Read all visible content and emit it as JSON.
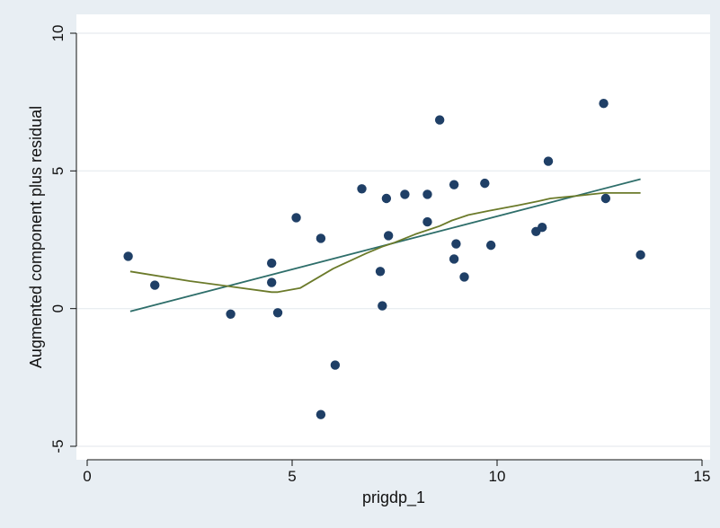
{
  "chart_data": {
    "type": "scatter",
    "title": "",
    "xlabel": "prigdp_1",
    "ylabel": "Augmented component plus residual",
    "xlim": [
      0,
      15
    ],
    "ylim": [
      -5,
      10
    ],
    "xticks": [
      0,
      5,
      10,
      15
    ],
    "yticks": [
      -5,
      0,
      5,
      10
    ],
    "xtick_labels": [
      "0",
      "5",
      "10",
      "15"
    ],
    "ytick_labels": [
      "-5",
      "0",
      "5",
      "10"
    ],
    "grid": "horizontal",
    "legend": "none",
    "colors": {
      "background": "#e8eef3",
      "plot_area": "#ffffff",
      "points": "#1f3f66",
      "fit_line": "#2e6e6a",
      "lowess_line": "#6b7a2a"
    },
    "series": [
      {
        "type": "scatter",
        "x": [
          1.0,
          1.65,
          3.5,
          4.5,
          4.5,
          4.65,
          5.1,
          5.7,
          5.7,
          6.05,
          6.7,
          7.15,
          7.2,
          7.3,
          7.35,
          7.75,
          8.3,
          8.3,
          8.6,
          8.95,
          8.95,
          9.0,
          9.2,
          9.7,
          9.85,
          10.95,
          11.1,
          11.25,
          12.6,
          12.65,
          13.5
        ],
        "y": [
          1.9,
          0.85,
          -0.2,
          1.65,
          0.95,
          -0.15,
          3.3,
          2.55,
          -3.85,
          -2.05,
          4.35,
          1.35,
          0.1,
          4.0,
          2.65,
          4.15,
          4.15,
          3.15,
          6.85,
          4.5,
          1.8,
          2.35,
          1.15,
          4.55,
          2.3,
          2.8,
          2.95,
          5.35,
          7.45,
          4.0,
          1.95
        ]
      },
      {
        "type": "line",
        "x": [
          1.05,
          13.5
        ],
        "y": [
          -0.1,
          4.7
        ]
      },
      {
        "type": "line",
        "x": [
          1.05,
          2.5,
          3.5,
          4.5,
          4.65,
          5.2,
          6.0,
          6.8,
          7.2,
          7.5,
          8.0,
          8.6,
          8.9,
          9.0,
          9.3,
          9.8,
          10.5,
          11.0,
          11.3,
          12.0,
          12.6,
          13.5
        ],
        "y": [
          1.35,
          1.0,
          0.8,
          0.6,
          0.6,
          0.75,
          1.45,
          2.0,
          2.25,
          2.4,
          2.7,
          3.0,
          3.2,
          3.25,
          3.4,
          3.55,
          3.75,
          3.9,
          4.0,
          4.1,
          4.2,
          4.2
        ]
      }
    ]
  }
}
